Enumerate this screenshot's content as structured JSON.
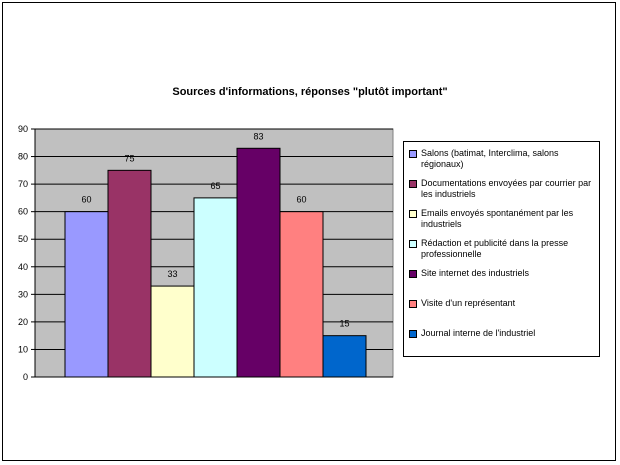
{
  "chart_data": {
    "type": "bar",
    "title": "Sources d'informations, réponses \"plutôt important\"",
    "xlabel": "",
    "ylabel": "",
    "ylim": [
      0,
      90
    ],
    "yticks": [
      0,
      10,
      20,
      30,
      40,
      50,
      60,
      70,
      80,
      90
    ],
    "grid": true,
    "legend_placement": "right",
    "categories": [
      "Salons (batimat, Interclima, salons régionaux)",
      "Documentations envoyées par courrier par les industriels",
      "Emails envoyés spontanément par les industriels",
      "Rédaction et publicité dans la presse professionnelle",
      "Site internet des industriels",
      "Visite d'un représentant",
      "Journal interne de l'industriel"
    ],
    "values": [
      60,
      75,
      33,
      65,
      83,
      60,
      15
    ],
    "value_labels": [
      "60",
      "75",
      "33",
      "65",
      "83",
      "60",
      "15"
    ],
    "colors": [
      "#9999ff",
      "#993366",
      "#ffffcc",
      "#ccffff",
      "#660066",
      "#ff8080",
      "#0066cc"
    ],
    "plot_background": "#c0c0c0"
  }
}
